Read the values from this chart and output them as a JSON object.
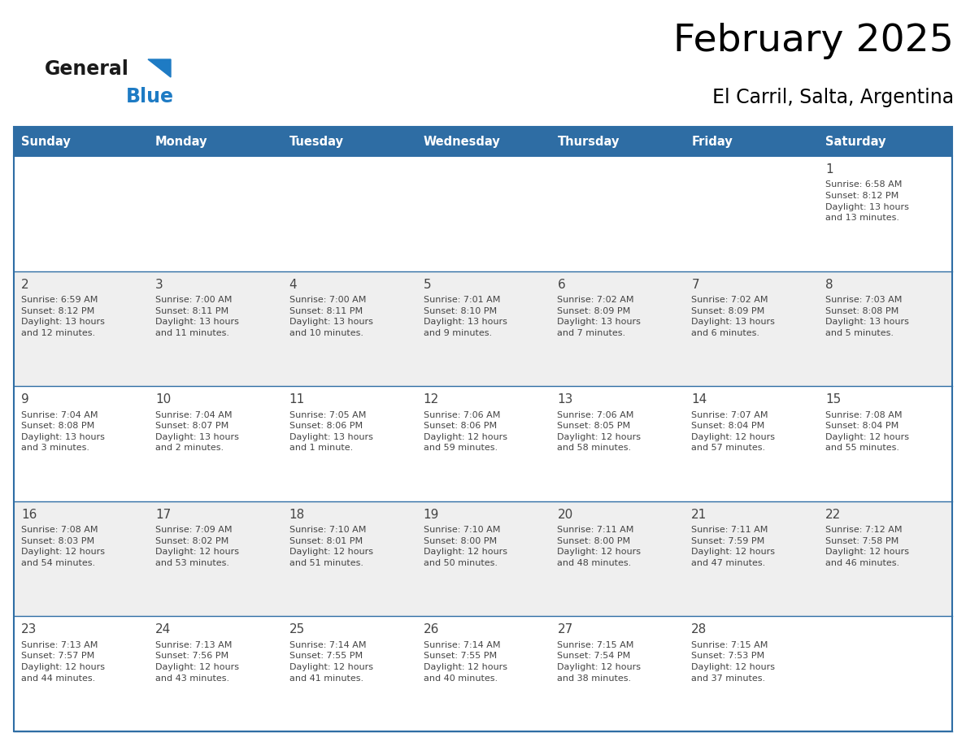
{
  "title": "February 2025",
  "subtitle": "El Carril, Salta, Argentina",
  "header_bg_color": "#2E6DA4",
  "header_text_color": "#FFFFFF",
  "cell_bg_white": "#FFFFFF",
  "cell_bg_gray": "#EFEFEF",
  "grid_line_color": "#2E6DA4",
  "title_color": "#000000",
  "subtitle_color": "#000000",
  "day_number_color": "#444444",
  "cell_text_color": "#444444",
  "logo_general_color": "#1a1a1a",
  "logo_blue_color": "#1E7BC4",
  "day_headers": [
    "Sunday",
    "Monday",
    "Tuesday",
    "Wednesday",
    "Thursday",
    "Friday",
    "Saturday"
  ],
  "calendar_data": [
    [
      null,
      null,
      null,
      null,
      null,
      null,
      {
        "day": "1",
        "sunrise": "6:58 AM",
        "sunset": "8:12 PM",
        "daylight": "13 hours\nand 13 minutes."
      }
    ],
    [
      {
        "day": "2",
        "sunrise": "6:59 AM",
        "sunset": "8:12 PM",
        "daylight": "13 hours\nand 12 minutes."
      },
      {
        "day": "3",
        "sunrise": "7:00 AM",
        "sunset": "8:11 PM",
        "daylight": "13 hours\nand 11 minutes."
      },
      {
        "day": "4",
        "sunrise": "7:00 AM",
        "sunset": "8:11 PM",
        "daylight": "13 hours\nand 10 minutes."
      },
      {
        "day": "5",
        "sunrise": "7:01 AM",
        "sunset": "8:10 PM",
        "daylight": "13 hours\nand 9 minutes."
      },
      {
        "day": "6",
        "sunrise": "7:02 AM",
        "sunset": "8:09 PM",
        "daylight": "13 hours\nand 7 minutes."
      },
      {
        "day": "7",
        "sunrise": "7:02 AM",
        "sunset": "8:09 PM",
        "daylight": "13 hours\nand 6 minutes."
      },
      {
        "day": "8",
        "sunrise": "7:03 AM",
        "sunset": "8:08 PM",
        "daylight": "13 hours\nand 5 minutes."
      }
    ],
    [
      {
        "day": "9",
        "sunrise": "7:04 AM",
        "sunset": "8:08 PM",
        "daylight": "13 hours\nand 3 minutes."
      },
      {
        "day": "10",
        "sunrise": "7:04 AM",
        "sunset": "8:07 PM",
        "daylight": "13 hours\nand 2 minutes."
      },
      {
        "day": "11",
        "sunrise": "7:05 AM",
        "sunset": "8:06 PM",
        "daylight": "13 hours\nand 1 minute."
      },
      {
        "day": "12",
        "sunrise": "7:06 AM",
        "sunset": "8:06 PM",
        "daylight": "12 hours\nand 59 minutes."
      },
      {
        "day": "13",
        "sunrise": "7:06 AM",
        "sunset": "8:05 PM",
        "daylight": "12 hours\nand 58 minutes."
      },
      {
        "day": "14",
        "sunrise": "7:07 AM",
        "sunset": "8:04 PM",
        "daylight": "12 hours\nand 57 minutes."
      },
      {
        "day": "15",
        "sunrise": "7:08 AM",
        "sunset": "8:04 PM",
        "daylight": "12 hours\nand 55 minutes."
      }
    ],
    [
      {
        "day": "16",
        "sunrise": "7:08 AM",
        "sunset": "8:03 PM",
        "daylight": "12 hours\nand 54 minutes."
      },
      {
        "day": "17",
        "sunrise": "7:09 AM",
        "sunset": "8:02 PM",
        "daylight": "12 hours\nand 53 minutes."
      },
      {
        "day": "18",
        "sunrise": "7:10 AM",
        "sunset": "8:01 PM",
        "daylight": "12 hours\nand 51 minutes."
      },
      {
        "day": "19",
        "sunrise": "7:10 AM",
        "sunset": "8:00 PM",
        "daylight": "12 hours\nand 50 minutes."
      },
      {
        "day": "20",
        "sunrise": "7:11 AM",
        "sunset": "8:00 PM",
        "daylight": "12 hours\nand 48 minutes."
      },
      {
        "day": "21",
        "sunrise": "7:11 AM",
        "sunset": "7:59 PM",
        "daylight": "12 hours\nand 47 minutes."
      },
      {
        "day": "22",
        "sunrise": "7:12 AM",
        "sunset": "7:58 PM",
        "daylight": "12 hours\nand 46 minutes."
      }
    ],
    [
      {
        "day": "23",
        "sunrise": "7:13 AM",
        "sunset": "7:57 PM",
        "daylight": "12 hours\nand 44 minutes."
      },
      {
        "day": "24",
        "sunrise": "7:13 AM",
        "sunset": "7:56 PM",
        "daylight": "12 hours\nand 43 minutes."
      },
      {
        "day": "25",
        "sunrise": "7:14 AM",
        "sunset": "7:55 PM",
        "daylight": "12 hours\nand 41 minutes."
      },
      {
        "day": "26",
        "sunrise": "7:14 AM",
        "sunset": "7:55 PM",
        "daylight": "12 hours\nand 40 minutes."
      },
      {
        "day": "27",
        "sunrise": "7:15 AM",
        "sunset": "7:54 PM",
        "daylight": "12 hours\nand 38 minutes."
      },
      {
        "day": "28",
        "sunrise": "7:15 AM",
        "sunset": "7:53 PM",
        "daylight": "12 hours\nand 37 minutes."
      },
      null
    ]
  ]
}
